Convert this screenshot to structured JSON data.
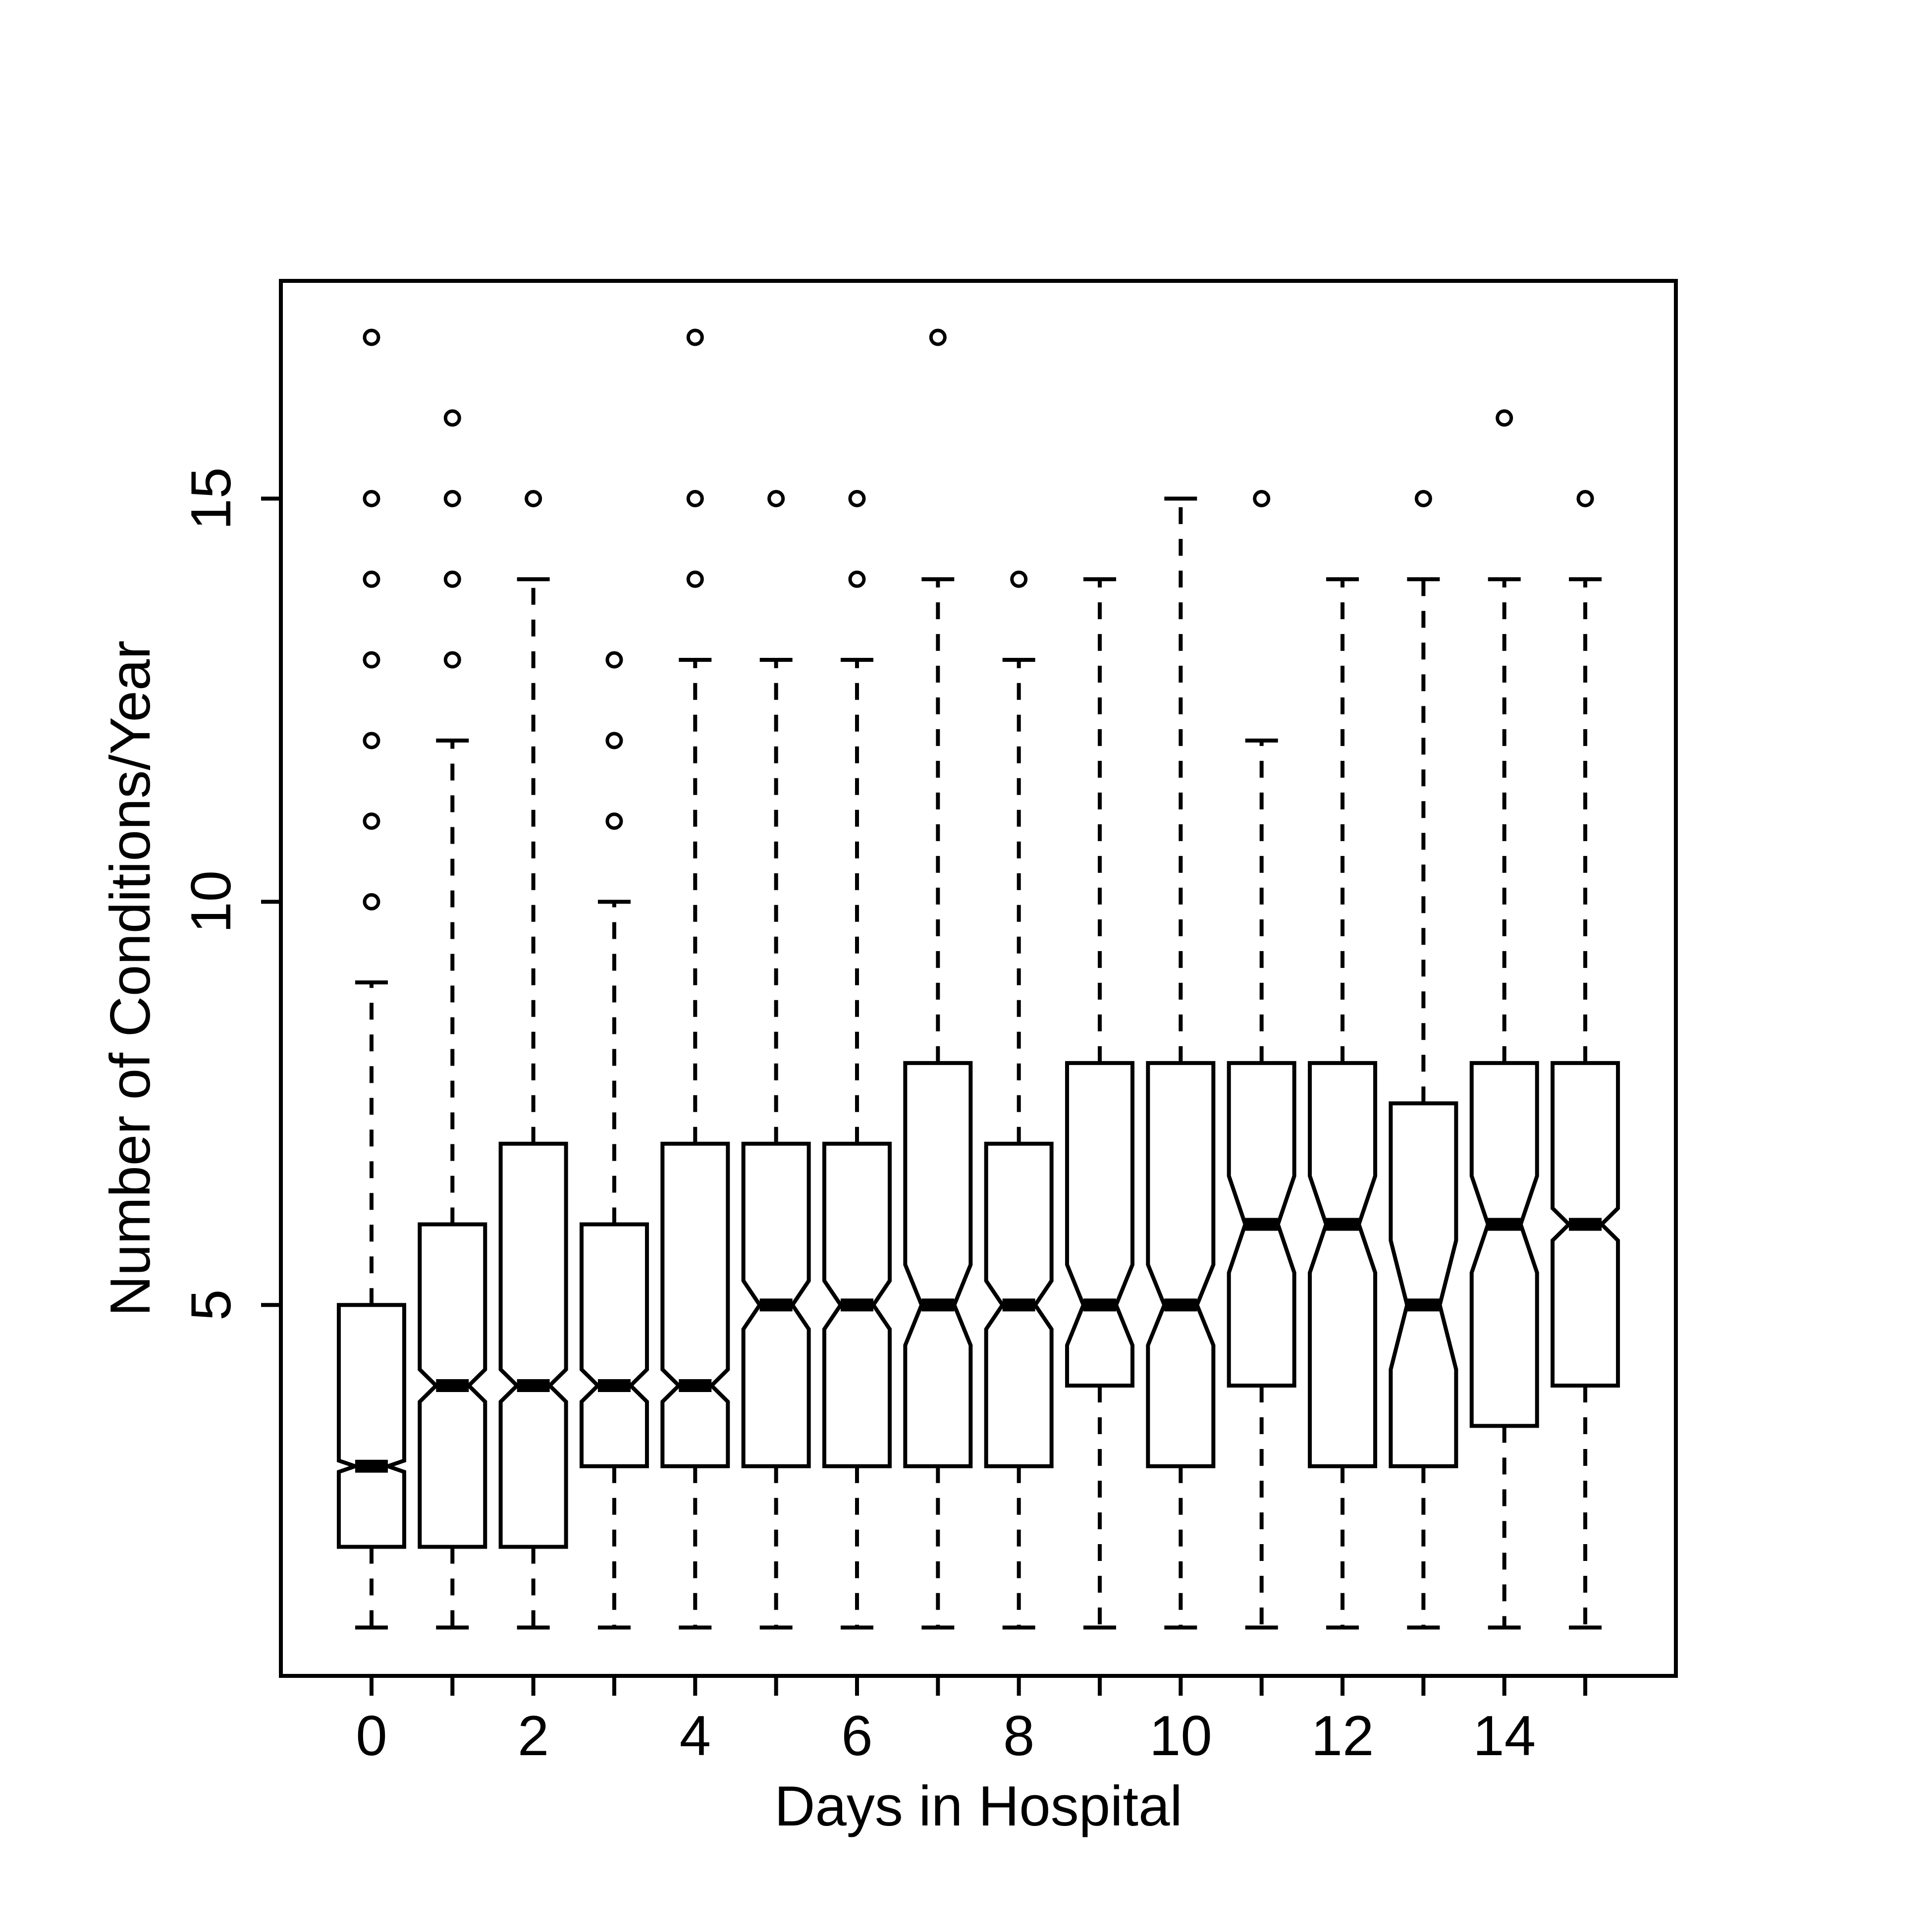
{
  "chart_data": {
    "type": "boxplot",
    "notched": true,
    "xlabel": "Days in Hospital",
    "ylabel": "Number of Conditions/Year",
    "x_ticks": [
      0,
      1,
      2,
      3,
      4,
      5,
      6,
      7,
      8,
      9,
      10,
      11,
      12,
      13,
      14,
      15
    ],
    "x_tick_labels": [
      "0",
      "",
      "2",
      "",
      "4",
      "",
      "6",
      "",
      "8",
      "",
      "10",
      "",
      "12",
      "",
      "14",
      ""
    ],
    "y_ticks": [
      5,
      10,
      15
    ],
    "y_tick_labels": [
      "5",
      "10",
      "15"
    ],
    "ylim": [
      0.4,
      17.7
    ],
    "xlim": [
      -1.12,
      16.12
    ],
    "grid": false,
    "boxes": [
      {
        "x": 0,
        "whisker_low": 1,
        "q1": 2,
        "median": 3,
        "q3": 5,
        "whisker_high": 9,
        "notch_low": 2.93,
        "notch_high": 3.07,
        "outliers": [
          10,
          11,
          12,
          13,
          14,
          15,
          17
        ]
      },
      {
        "x": 1,
        "whisker_low": 1,
        "q1": 2,
        "median": 4,
        "q3": 6,
        "whisker_high": 12,
        "notch_low": 3.8,
        "notch_high": 4.2,
        "outliers": [
          13,
          14,
          15,
          16
        ]
      },
      {
        "x": 2,
        "whisker_low": 1,
        "q1": 2,
        "median": 4,
        "q3": 7,
        "whisker_high": 14,
        "notch_low": 3.8,
        "notch_high": 4.2,
        "outliers": [
          15
        ]
      },
      {
        "x": 3,
        "whisker_low": 1,
        "q1": 3,
        "median": 4,
        "q3": 6,
        "whisker_high": 10,
        "notch_low": 3.8,
        "notch_high": 4.2,
        "outliers": [
          11,
          12,
          13
        ]
      },
      {
        "x": 4,
        "whisker_low": 1,
        "q1": 3,
        "median": 4,
        "q3": 7,
        "whisker_high": 13,
        "notch_low": 3.8,
        "notch_high": 4.2,
        "outliers": [
          14,
          15,
          17
        ]
      },
      {
        "x": 5,
        "whisker_low": 1,
        "q1": 3,
        "median": 5,
        "q3": 7,
        "whisker_high": 13,
        "notch_low": 4.7,
        "notch_high": 5.3,
        "outliers": [
          15
        ]
      },
      {
        "x": 6,
        "whisker_low": 1,
        "q1": 3,
        "median": 5,
        "q3": 7,
        "whisker_high": 13,
        "notch_low": 4.7,
        "notch_high": 5.3,
        "outliers": [
          14,
          15
        ]
      },
      {
        "x": 7,
        "whisker_low": 1,
        "q1": 3,
        "median": 5,
        "q3": 8,
        "whisker_high": 14,
        "notch_low": 4.5,
        "notch_high": 5.5,
        "outliers": [
          17
        ]
      },
      {
        "x": 8,
        "whisker_low": 1,
        "q1": 3,
        "median": 5,
        "q3": 7,
        "whisker_high": 13,
        "notch_low": 4.7,
        "notch_high": 5.3,
        "outliers": [
          14
        ]
      },
      {
        "x": 9,
        "whisker_low": 1,
        "q1": 4,
        "median": 5,
        "q3": 8,
        "whisker_high": 14,
        "notch_low": 4.5,
        "notch_high": 5.5,
        "outliers": []
      },
      {
        "x": 10,
        "whisker_low": 1,
        "q1": 3,
        "median": 5,
        "q3": 8,
        "whisker_high": 15,
        "notch_low": 4.5,
        "notch_high": 5.5,
        "outliers": []
      },
      {
        "x": 11,
        "whisker_low": 1,
        "q1": 4,
        "median": 6,
        "q3": 8,
        "whisker_high": 12,
        "notch_low": 5.4,
        "notch_high": 6.6,
        "outliers": [
          15
        ]
      },
      {
        "x": 12,
        "whisker_low": 1,
        "q1": 3,
        "median": 6,
        "q3": 8,
        "whisker_high": 14,
        "notch_low": 5.4,
        "notch_high": 6.6,
        "outliers": []
      },
      {
        "x": 13,
        "whisker_low": 1,
        "q1": 3,
        "median": 5,
        "q3": 7.5,
        "whisker_high": 14,
        "notch_low": 4.2,
        "notch_high": 5.8,
        "outliers": [
          15
        ]
      },
      {
        "x": 14,
        "whisker_low": 1,
        "q1": 3.5,
        "median": 6,
        "q3": 8,
        "whisker_high": 14,
        "notch_low": 5.4,
        "notch_high": 6.6,
        "outliers": [
          16
        ]
      },
      {
        "x": 15,
        "whisker_low": 1,
        "q1": 4,
        "median": 6,
        "q3": 8,
        "whisker_high": 14,
        "notch_low": 5.8,
        "notch_high": 6.2,
        "outliers": [
          15
        ]
      }
    ]
  }
}
